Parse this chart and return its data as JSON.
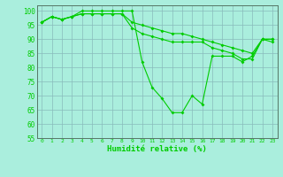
{
  "x": [
    0,
    1,
    2,
    3,
    4,
    5,
    6,
    7,
    8,
    9,
    10,
    11,
    12,
    13,
    14,
    15,
    16,
    17,
    18,
    19,
    20,
    21,
    22,
    23
  ],
  "line1": [
    96,
    98,
    97,
    98,
    100,
    100,
    100,
    100,
    100,
    100,
    82,
    73,
    69,
    64,
    64,
    70,
    67,
    84,
    84,
    84,
    82,
    84,
    90,
    90
  ],
  "line2": [
    96,
    98,
    97,
    98,
    99,
    99,
    99,
    99,
    99,
    94,
    92,
    91,
    90,
    89,
    89,
    89,
    89,
    87,
    86,
    85,
    83,
    83,
    90,
    90
  ],
  "line3": [
    96,
    98,
    97,
    98,
    99,
    99,
    99,
    99,
    99,
    96,
    95,
    94,
    93,
    92,
    92,
    91,
    90,
    89,
    88,
    87,
    86,
    85,
    90,
    89
  ],
  "xlabel": "Humidité relative (%)",
  "line_color": "#00cc00",
  "bg_color": "#aaeedd",
  "grid_color": "#88bbbb",
  "ylim": [
    55,
    102
  ],
  "xlim": [
    -0.5,
    23.5
  ],
  "yticks": [
    55,
    60,
    65,
    70,
    75,
    80,
    85,
    90,
    95,
    100
  ],
  "xticks": [
    0,
    1,
    2,
    3,
    4,
    5,
    6,
    7,
    8,
    9,
    10,
    11,
    12,
    13,
    14,
    15,
    16,
    17,
    18,
    19,
    20,
    21,
    22,
    23
  ]
}
